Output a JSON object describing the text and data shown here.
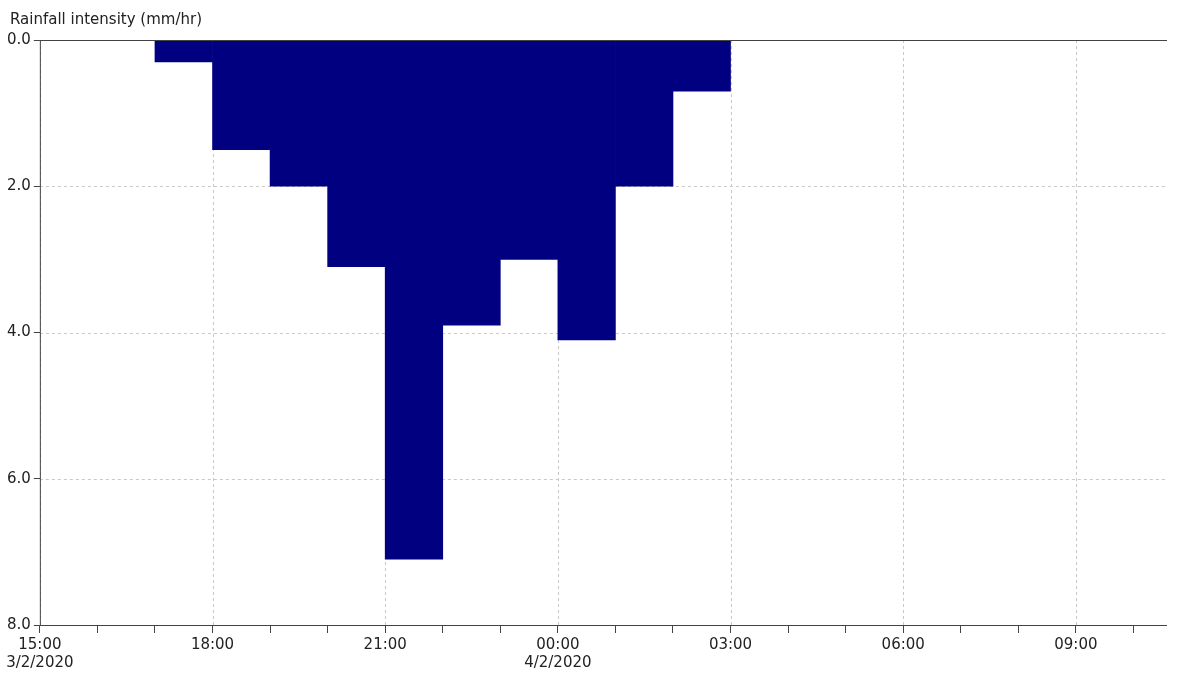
{
  "chart_data": {
    "type": "histogram",
    "ylabel": "Rainfall intensity (mm/hr)",
    "bins": [
      "2020-02-03T17:00",
      "2020-02-03T18:00",
      "2020-02-03T19:00",
      "2020-02-03T20:00",
      "2020-02-03T21:00",
      "2020-02-03T22:00",
      "2020-02-03T23:00",
      "2020-02-04T00:00",
      "2020-02-04T01:00",
      "2020-02-04T02:00",
      "2020-02-04T03:00"
    ],
    "values": [
      0.3,
      1.5,
      2.0,
      3.1,
      7.1,
      3.9,
      3.0,
      4.1,
      2.0,
      0.7
    ],
    "color": "#000080",
    "xlim": [
      "2020-02-03T15:00",
      "2020-02-04T10:35"
    ],
    "xticks": [
      {
        "value": "2020-02-03T15:00",
        "label": "15:00\n3/2/2020"
      },
      {
        "value": "2020-02-03T16:00",
        "label": null
      },
      {
        "value": "2020-02-03T17:00",
        "label": null
      },
      {
        "value": "2020-02-03T18:00",
        "label": "18:00"
      },
      {
        "value": "2020-02-03T19:00",
        "label": null
      },
      {
        "value": "2020-02-03T20:00",
        "label": null
      },
      {
        "value": "2020-02-03T21:00",
        "label": "21:00"
      },
      {
        "value": "2020-02-03T22:00",
        "label": null
      },
      {
        "value": "2020-02-03T23:00",
        "label": null
      },
      {
        "value": "2020-02-04T00:00",
        "label": "00:00\n4/2/2020"
      },
      {
        "value": "2020-02-04T01:00",
        "label": null
      },
      {
        "value": "2020-02-04T02:00",
        "label": null
      },
      {
        "value": "2020-02-04T03:00",
        "label": "03:00"
      },
      {
        "value": "2020-02-04T04:00",
        "label": null
      },
      {
        "value": "2020-02-04T05:00",
        "label": null
      },
      {
        "value": "2020-02-04T06:00",
        "label": "06:00"
      },
      {
        "value": "2020-02-04T07:00",
        "label": null
      },
      {
        "value": "2020-02-04T08:00",
        "label": null
      },
      {
        "value": "2020-02-04T09:00",
        "label": "09:00"
      },
      {
        "value": "2020-02-04T10:00",
        "label": null
      }
    ],
    "ylim": [
      8,
      0
    ],
    "yticks": [
      {
        "value": 0,
        "label": "0.0"
      },
      {
        "value": 2,
        "label": "2.0"
      },
      {
        "value": 4,
        "label": "4.0"
      },
      {
        "value": 6,
        "label": "6.0"
      },
      {
        "value": 8,
        "label": "8.0"
      }
    ],
    "grid": true,
    "legend": false
  }
}
